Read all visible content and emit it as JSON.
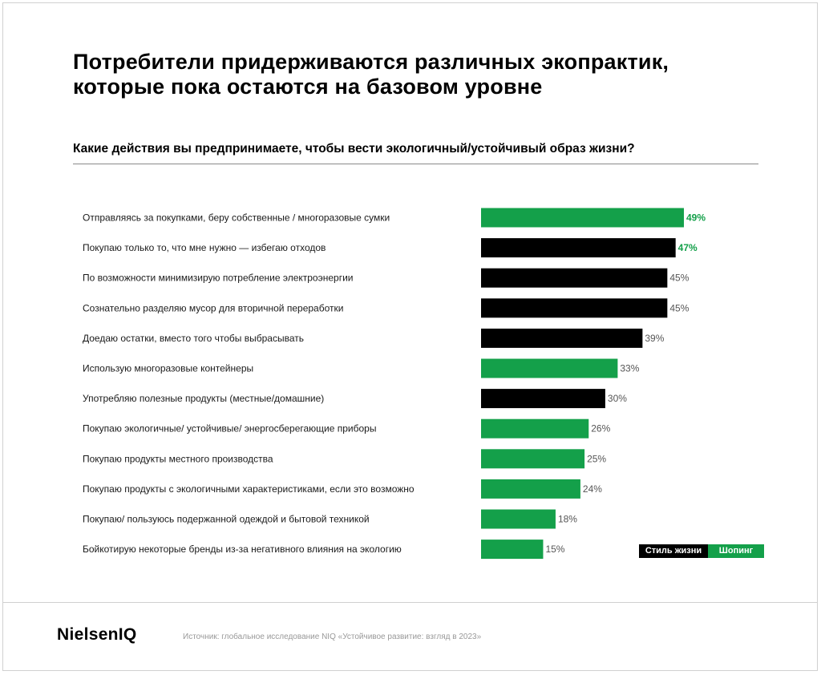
{
  "headline": {
    "line1": "Потребители придерживаются различных экопрактик,",
    "line2": "которые пока остаются на базовом уровне"
  },
  "question": "Какие действия вы предпринимаете, чтобы вести экологичный/устойчивый образ жизни?",
  "legend": {
    "lifestyle": "Стиль жизни",
    "shopping": "Шопинг"
  },
  "colors": {
    "lifestyle": "#000000",
    "shopping": "#14a04a",
    "highlight_text": "#14a04a"
  },
  "footer": {
    "logo": "NielsenIQ",
    "source": "Источник: глобальное исследование NIQ «Устойчивое развитие: взгляд в 2023»"
  },
  "chart_data": {
    "type": "bar",
    "orientation": "horizontal",
    "categories": [
      "Отправляясь за покупками, беру собственные / многоразовые сумки",
      "Покупаю только то, что мне нужно — избегаю отходов",
      "По возможности минимизирую потребление электроэнергии",
      "Сознательно разделяю мусор для вторичной переработки",
      "Доедаю остатки, вместо того чтобы выбрасывать",
      "Использую многоразовые контейнеры",
      "Употребляю полезные продукты (местные/домашние)",
      "Покупаю экологичные/ устойчивые/ энергосберегающие приборы",
      "Покупаю продукты местного производства",
      "Покупаю продукты с экологичными характеристиками, если это возможно",
      "Покупаю/ пользуюсь подержанной одеждой и бытовой техникой",
      "Бойкотирую некоторые бренды из-за негативного влияния на экологию"
    ],
    "values": [
      49,
      47,
      45,
      45,
      39,
      33,
      30,
      26,
      25,
      24,
      18,
      15
    ],
    "value_labels": [
      "49%",
      "47%",
      "45%",
      "45%",
      "39%",
      "33%",
      "30%",
      "26%",
      "25%",
      "24%",
      "18%",
      "15%"
    ],
    "groups": [
      "shopping",
      "lifestyle",
      "lifestyle",
      "lifestyle",
      "lifestyle",
      "shopping",
      "lifestyle",
      "shopping",
      "shopping",
      "shopping",
      "shopping",
      "shopping"
    ],
    "highlighted": [
      true,
      true,
      false,
      false,
      false,
      false,
      false,
      false,
      false,
      false,
      false,
      false
    ],
    "xlim": [
      0,
      49
    ],
    "grid": false,
    "legend_position": "bottom-right"
  }
}
